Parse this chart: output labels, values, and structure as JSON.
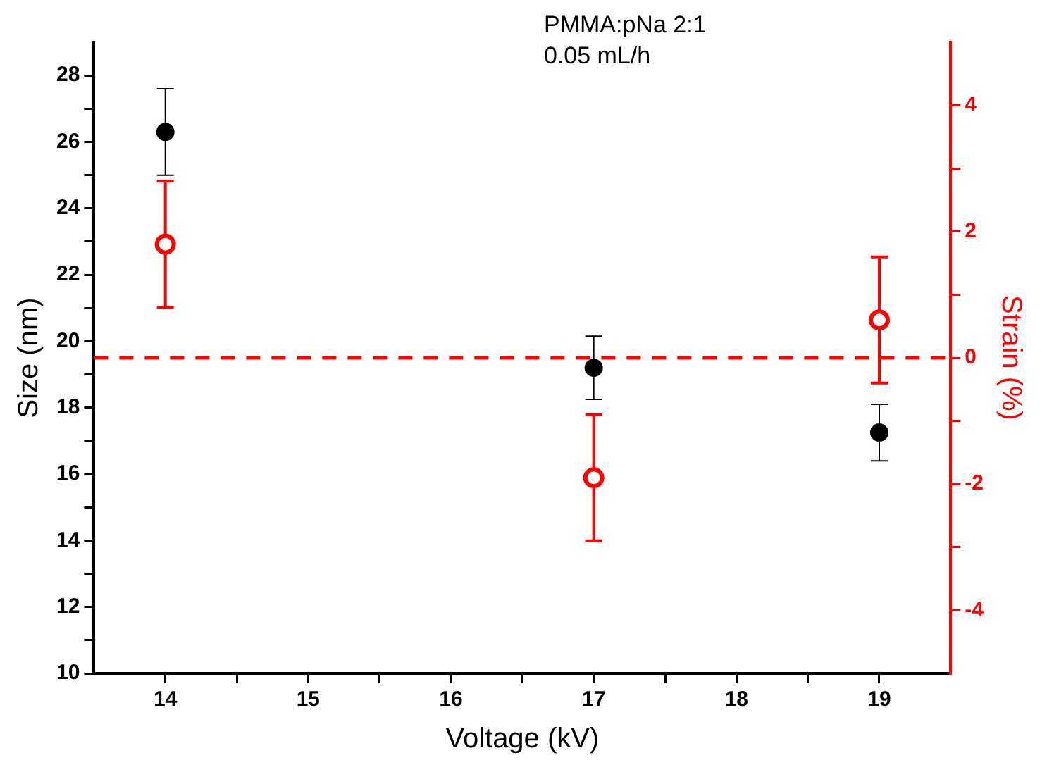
{
  "chart_data": {
    "type": "scatter",
    "xlabel": "Voltage (kV)",
    "ylabel": "Size (nm)",
    "y2label": "Strain (%)",
    "annotations": [
      "PMMA:pNa 2:1",
      "0.05 mL/h"
    ],
    "x": [
      14,
      17,
      19
    ],
    "series": [
      {
        "color": "#000000",
        "values": [
          26.3,
          19.2,
          17.25
        ],
        "errors": [
          1.3,
          0.95,
          0.85
        ]
      },
      {
        "color": "#ff0000",
        "axis": "y2",
        "values": [
          1.8,
          -1.9,
          0.6
        ],
        "errors": [
          1.0,
          1.0,
          1.0
        ]
      }
    ],
    "xlim": [
      13.5,
      19.5
    ],
    "xticks": [
      14,
      {
        "value": 14.5,
        "label": null
      },
      15,
      {
        "value": 15.5,
        "label": null
      },
      16,
      {
        "value": 16.5,
        "label": null
      },
      17,
      {
        "value": 17.5,
        "label": null
      },
      18,
      {
        "value": 18.5,
        "label": null
      },
      19
    ],
    "ylim": [
      10,
      29
    ],
    "yticks": [
      10,
      {
        "value": 11,
        "label": null
      },
      12,
      {
        "value": 13,
        "label": null
      },
      14,
      {
        "value": 15,
        "label": null
      },
      16,
      {
        "value": 17,
        "label": null
      },
      18,
      {
        "value": 19,
        "label": null
      },
      20,
      {
        "value": 21,
        "label": null
      },
      22,
      {
        "value": 23,
        "label": null
      },
      24,
      {
        "value": 25,
        "label": null
      },
      26,
      {
        "value": 27,
        "label": null
      },
      28
    ],
    "y2lim": [
      -5,
      5
    ],
    "y2ticks": [
      -4,
      {
        "value": -3,
        "label": null
      },
      -2,
      {
        "value": -1,
        "label": null
      },
      0,
      {
        "value": 1,
        "label": null
      },
      2,
      {
        "value": 3,
        "label": null
      },
      4
    ],
    "ref_lines": [
      {
        "axis": "y2",
        "value": 0,
        "color": "#ff0000",
        "line_style": "dashed"
      }
    ],
    "marker": "circle",
    "legend": false
  }
}
